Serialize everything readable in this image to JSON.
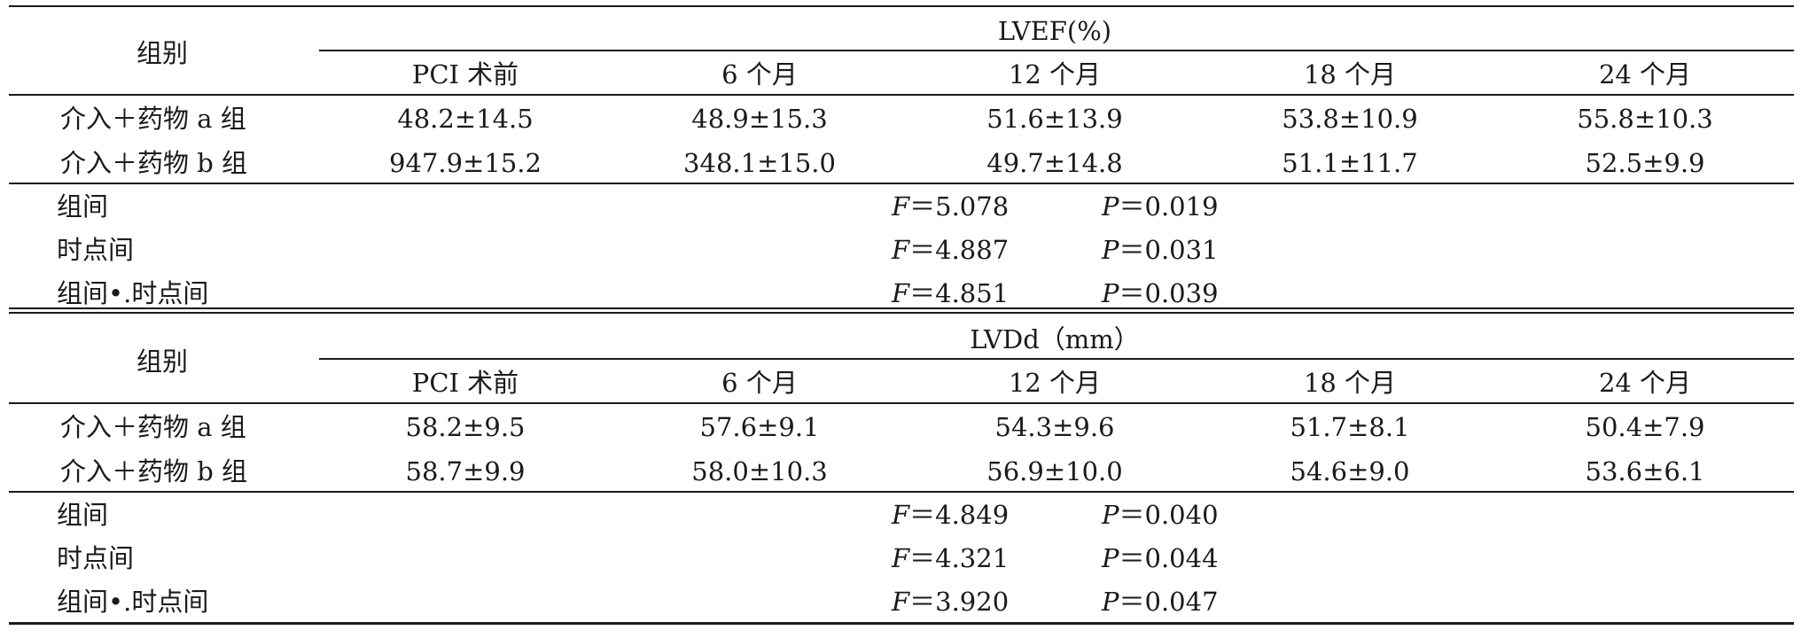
{
  "sections": [
    {
      "group_header": "组别",
      "measure_header": "LVEF(%)",
      "timepoints": [
        "PCI 术前",
        "6 个月",
        "12 个月",
        "18 个月",
        "24 个月"
      ],
      "rows": [
        {
          "group": "介入＋药物 a 组",
          "values": [
            "48.2±14.5",
            "48.9±15.3",
            "51.6±13.9",
            "53.8±10.9",
            "55.8±10.3"
          ]
        },
        {
          "group": "介入＋药物 b 组",
          "values": [
            "947.9±15.2",
            "348.1±15.0",
            "49.7±14.8",
            "51.1±11.7",
            "52.5±9.9"
          ]
        }
      ],
      "stats": [
        {
          "label": "组间",
          "f_label": "F",
          "f_value": "＝5.078",
          "p_label": "P",
          "p_value": "＝0.019"
        },
        {
          "label": "时点间",
          "f_label": "F",
          "f_value": "＝4.887",
          "p_label": "P",
          "p_value": "＝0.031"
        },
        {
          "label": "组间•.时点间",
          "f_label": "F",
          "f_value": "＝4.851",
          "p_label": "P",
          "p_value": "＝0.039"
        }
      ]
    },
    {
      "group_header": "组别",
      "measure_header": "LVDd（mm）",
      "timepoints": [
        "PCI 术前",
        "6 个月",
        "12 个月",
        "18 个月",
        "24 个月"
      ],
      "rows": [
        {
          "group": "介入＋药物 a 组",
          "values": [
            "58.2±9.5",
            "57.6±9.1",
            "54.3±9.6",
            "51.7±8.1",
            "50.4±7.9"
          ]
        },
        {
          "group": "介入＋药物 b 组",
          "values": [
            "58.7±9.9",
            "58.0±10.3",
            "56.9±10.0",
            "54.6±9.0",
            "53.6±6.1"
          ]
        }
      ],
      "stats": [
        {
          "label": "组间",
          "f_label": "F",
          "f_value": "＝4.849",
          "p_label": "P",
          "p_value": "＝0.040"
        },
        {
          "label": "时点间",
          "f_label": "F",
          "f_value": "＝4.321",
          "p_label": "P",
          "p_value": "＝0.044"
        },
        {
          "label": "组间•.时点间",
          "f_label": "F",
          "f_value": "＝3.920",
          "p_label": "P",
          "p_value": "＝0.047"
        }
      ]
    }
  ]
}
